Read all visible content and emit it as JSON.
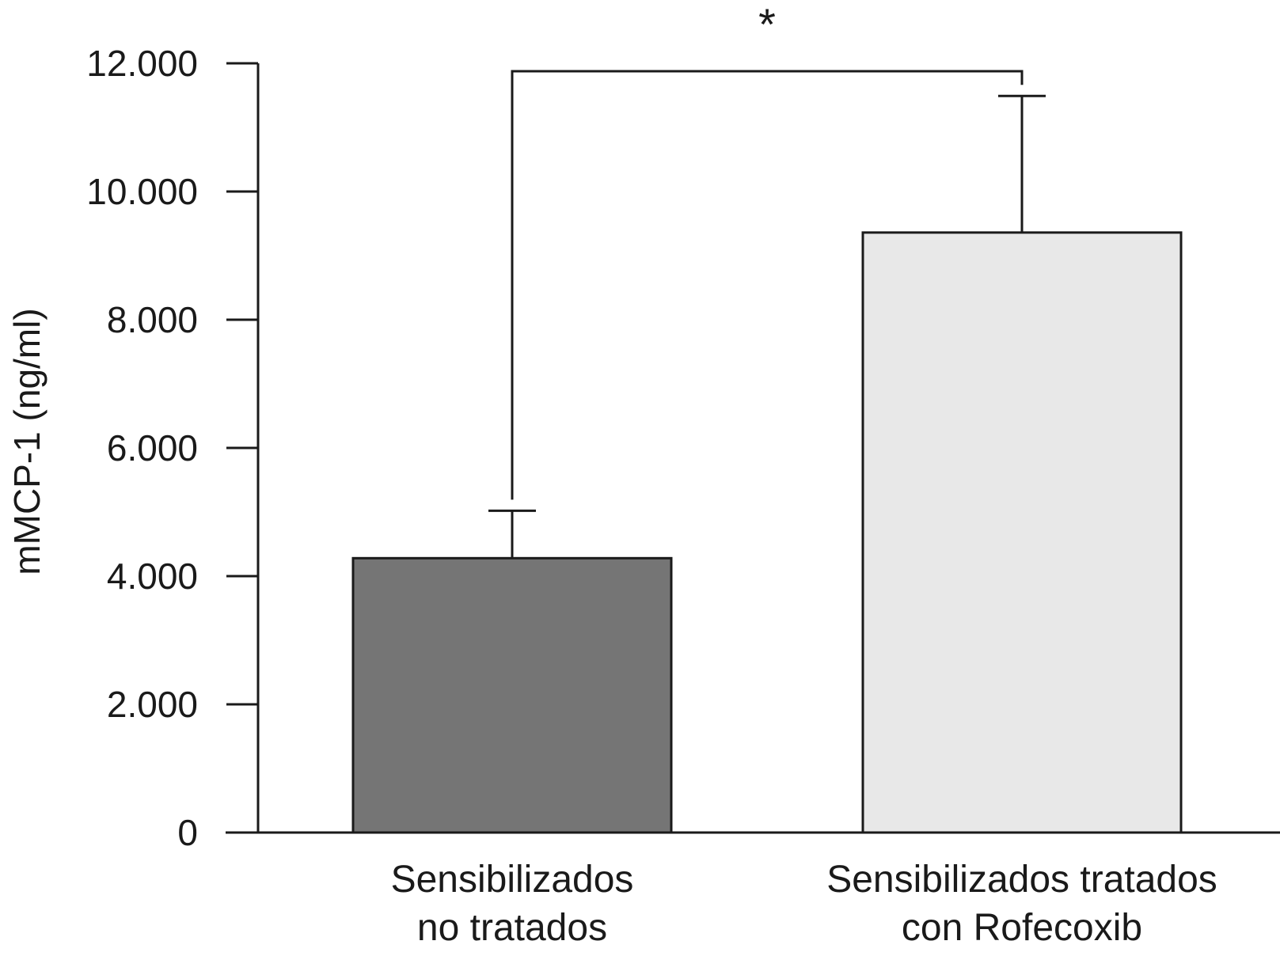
{
  "chart_data": {
    "type": "bar",
    "title": "",
    "xlabel": "",
    "ylabel": "mMCP-1 (ng/ml)",
    "ylim": [
      0,
      12000
    ],
    "yticks": [
      0,
      2000,
      4000,
      6000,
      8000,
      10000,
      12000
    ],
    "ytick_labels": [
      "0",
      "2.000",
      "4.000",
      "6.000",
      "8.000",
      "10.000",
      "12.000"
    ],
    "categories": [
      [
        "Sensibilizados",
        "no tratados"
      ],
      [
        "Sensibilizados tratados",
        "con Rofecoxib"
      ]
    ],
    "values": [
      4280,
      9360
    ],
    "error_upper": [
      5020,
      11490
    ],
    "bar_colors": [
      "#757575",
      "#e8e8e8"
    ],
    "significance": {
      "label": "*",
      "between": [
        0,
        1
      ]
    },
    "grid": false,
    "legend": null
  }
}
